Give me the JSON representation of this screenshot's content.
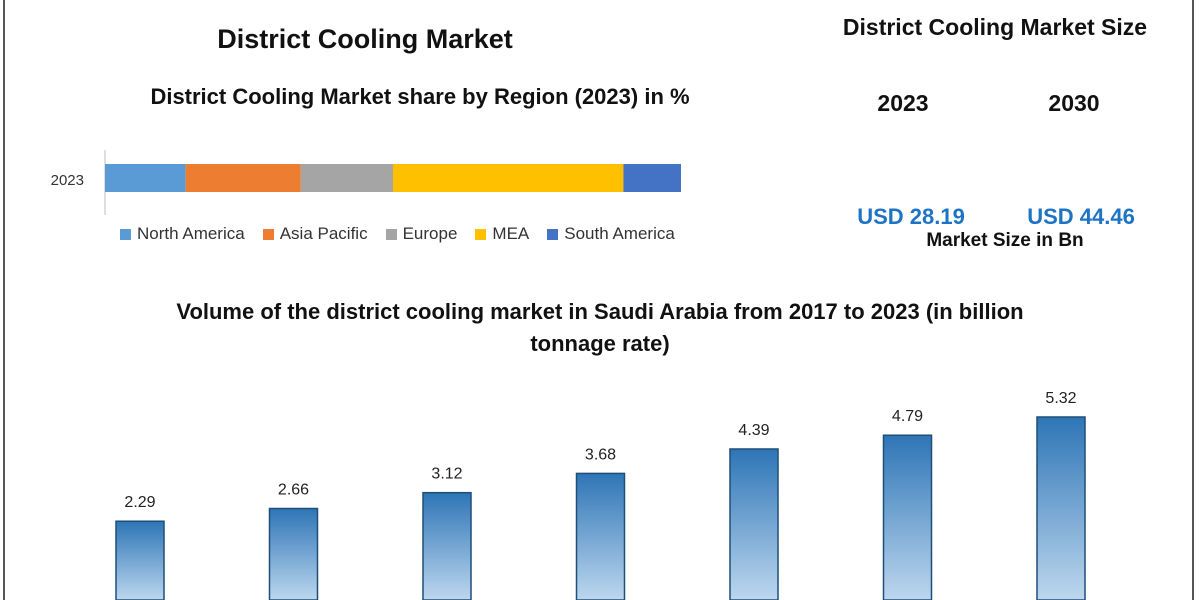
{
  "header": {
    "main_title": "District Cooling Market",
    "share_title": "District Cooling Market share by Region (2023) in %",
    "size_title": "District Cooling Market Size",
    "year_a": "2023",
    "year_b": "2030",
    "usd_a": "USD 28.19",
    "usd_b": "USD 44.46",
    "size_note": "Market Size in Bn"
  },
  "chart_data": [
    {
      "type": "bar",
      "orientation": "horizontal-stacked",
      "title": "District Cooling Market share by Region (2023) in %",
      "categories": [
        "2023"
      ],
      "legend_position": "bottom",
      "series": [
        {
          "name": "North America",
          "values": [
            14
          ],
          "color": "#5b9bd5"
        },
        {
          "name": "Asia Pacific",
          "values": [
            20
          ],
          "color": "#ed7d31"
        },
        {
          "name": "Europe",
          "values": [
            16
          ],
          "color": "#a5a5a5"
        },
        {
          "name": "MEA",
          "values": [
            40
          ],
          "color": "#ffc000"
        },
        {
          "name": "South America",
          "values": [
            10
          ],
          "color": "#4472c4"
        }
      ]
    },
    {
      "type": "bar",
      "title": "Volume of the district cooling market in Saudi Arabia from 2017 to 2023 (in billion tonnage rate)",
      "values": [
        2.29,
        2.66,
        3.12,
        3.68,
        4.39,
        4.79,
        5.32
      ],
      "data_labels": [
        "2.29",
        "2.66",
        "3.12",
        "3.68",
        "4.39",
        "4.79",
        "5.32"
      ],
      "bar_color_top": "#2e75b6",
      "bar_color_bottom": "#bdd7ee"
    }
  ]
}
